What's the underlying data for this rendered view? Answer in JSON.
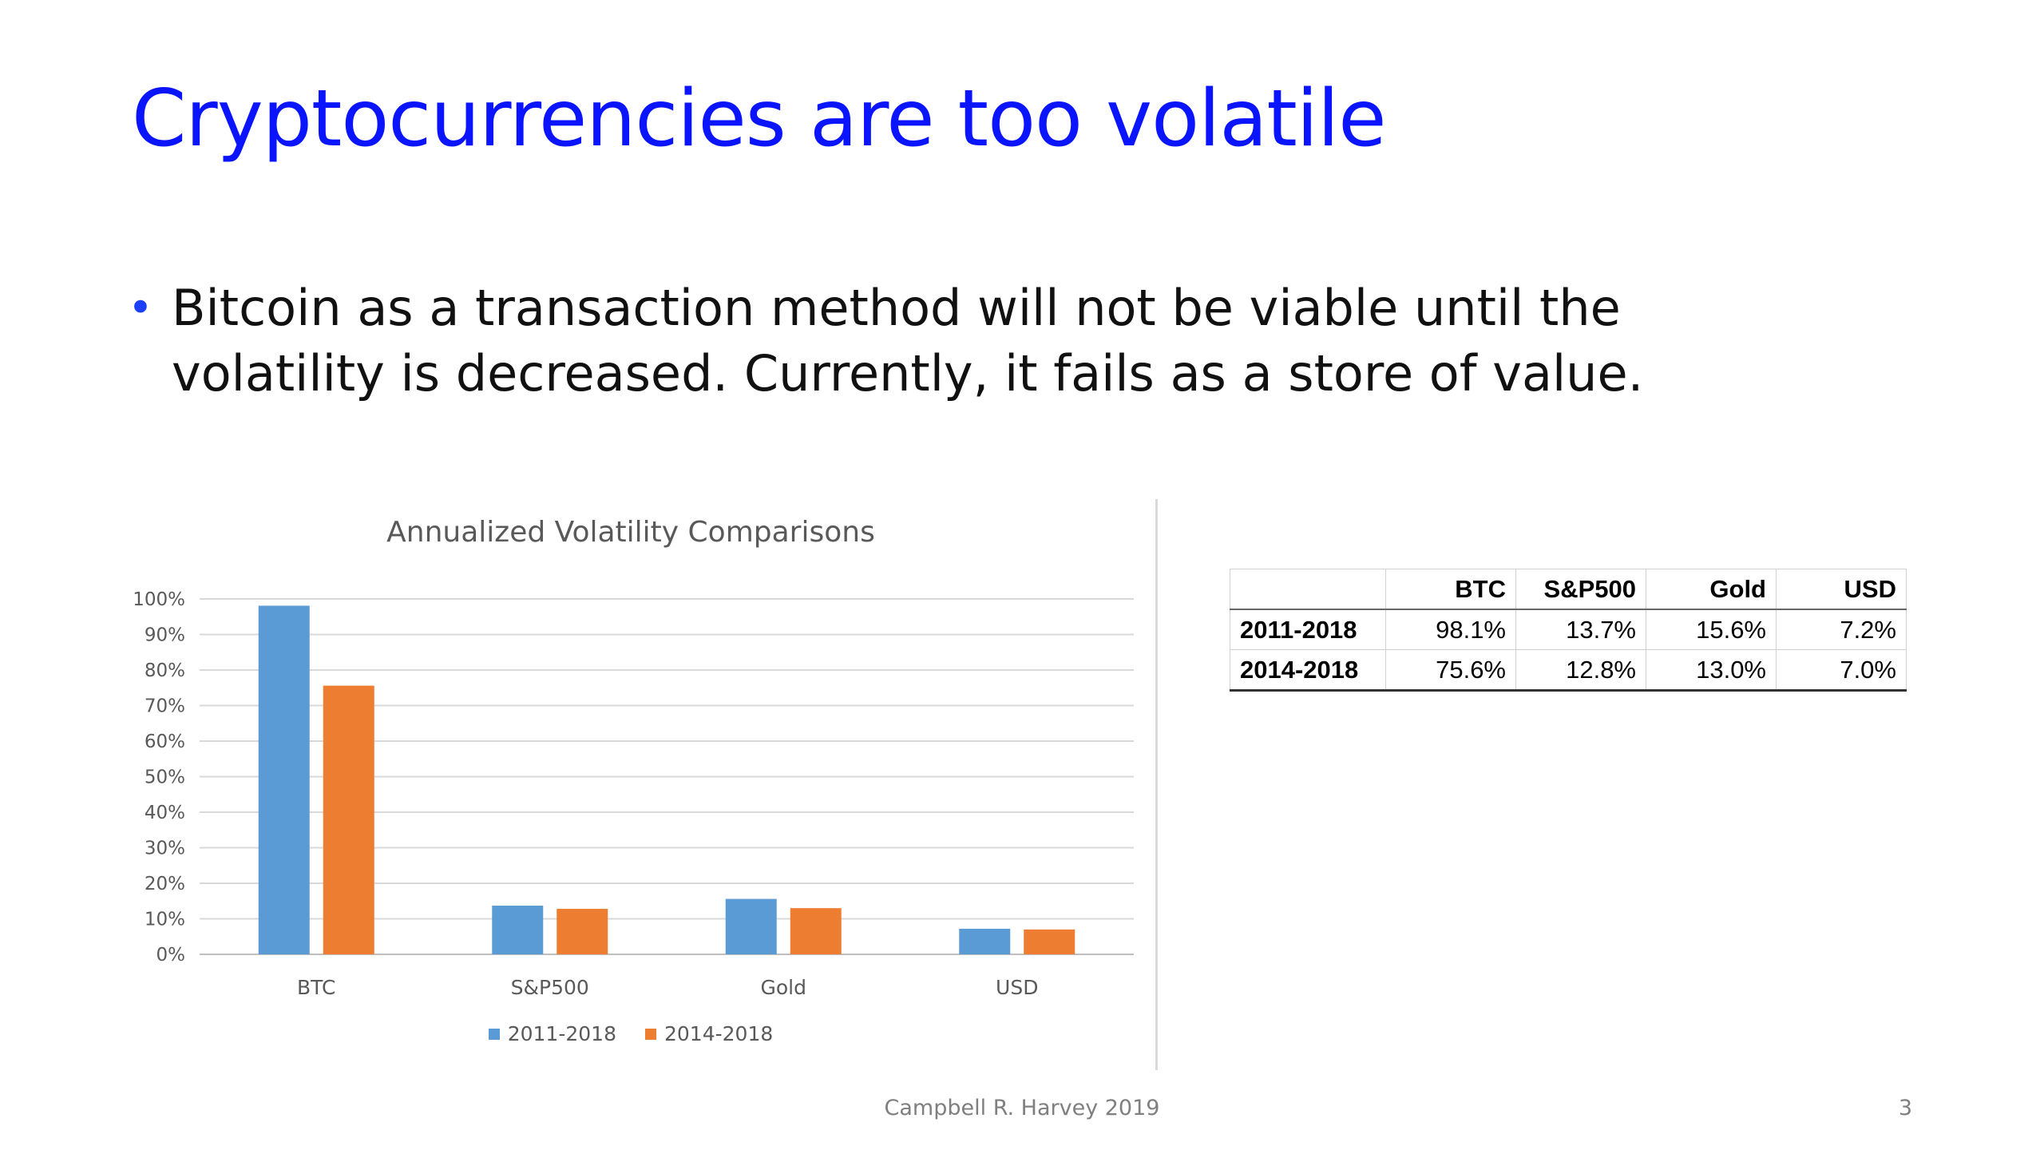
{
  "slide": {
    "title": "Cryptocurrencies are too volatile",
    "bullet_symbol": "•",
    "bullet_text": "Bitcoin as a transaction method will not be viable until the volatility is decreased. Currently, it fails as a store of value.",
    "footer": "Campbell R. Harvey 2019",
    "page_number": "3"
  },
  "chart_data": {
    "type": "bar",
    "title": "Annualized Volatility Comparisons",
    "categories": [
      "BTC",
      "S&P500",
      "Gold",
      "USD"
    ],
    "series": [
      {
        "name": "2011-2018",
        "values": [
          98.1,
          13.7,
          15.6,
          7.2
        ],
        "color": "#5b9bd5"
      },
      {
        "name": "2014-2018",
        "values": [
          75.6,
          12.8,
          13.0,
          7.0
        ],
        "color": "#ed7d31"
      }
    ],
    "y_ticks": [
      "0%",
      "10%",
      "20%",
      "30%",
      "40%",
      "50%",
      "60%",
      "70%",
      "80%",
      "90%",
      "100%"
    ],
    "ylim": [
      0,
      100
    ],
    "grid": true,
    "legend_position": "bottom"
  },
  "table": {
    "headers": [
      "BTC",
      "S&P500",
      "Gold",
      "USD"
    ],
    "rows": [
      {
        "label": "2011-2018",
        "values": [
          "98.1%",
          "13.7%",
          "15.6%",
          "7.2%"
        ]
      },
      {
        "label": "2014-2018",
        "values": [
          "75.6%",
          "12.8%",
          "13.0%",
          "7.0%"
        ]
      }
    ]
  }
}
